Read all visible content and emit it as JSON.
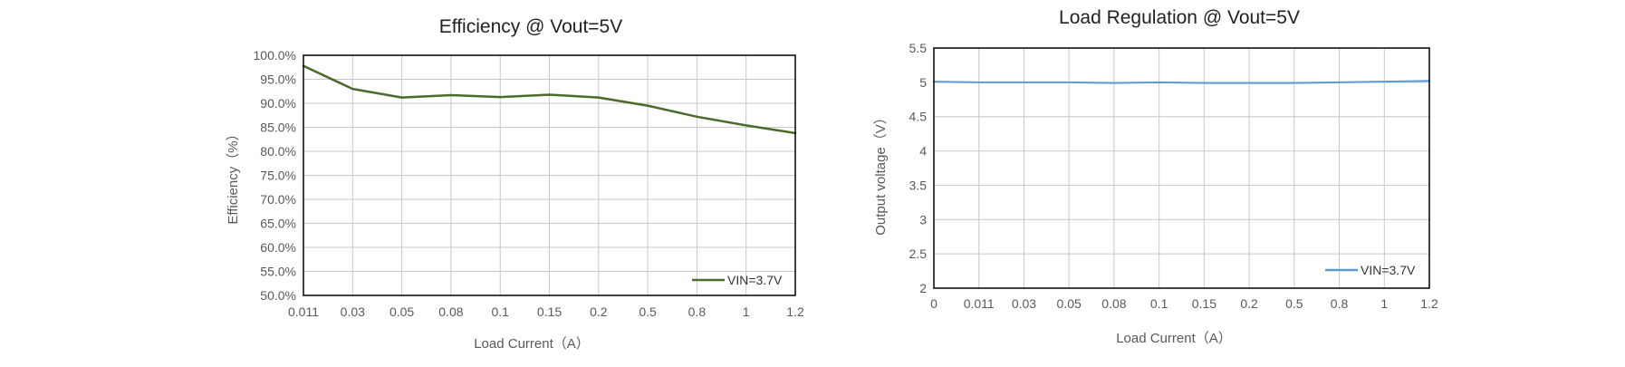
{
  "chart_data": [
    {
      "type": "line",
      "title": "Efficiency @  Vout=5V",
      "xlabel": "Load Current（A）",
      "ylabel": "Efficiency（%）",
      "categories": [
        "0.011",
        "0.03",
        "0.05",
        "0.08",
        "0.1",
        "0.15",
        "0.2",
        "0.5",
        "0.8",
        "1",
        "1.2"
      ],
      "y_ticks": [
        "50.0%",
        "55.0%",
        "60.0%",
        "65.0%",
        "70.0%",
        "75.0%",
        "80.0%",
        "85.0%",
        "90.0%",
        "95.0%",
        "100.0%"
      ],
      "ylim": [
        50,
        100
      ],
      "grid": true,
      "legend_position": "bottom-right",
      "series": [
        {
          "name": "VIN=3.7V",
          "color": "#4a6b2a",
          "values": [
            97.8,
            93.0,
            91.2,
            91.7,
            91.3,
            91.8,
            91.2,
            89.5,
            87.2,
            85.4,
            83.8
          ]
        }
      ]
    },
    {
      "type": "line",
      "title": "Load Regulation @ Vout=5V",
      "xlabel": "Load Current（A）",
      "ylabel": "Output voltage（V）",
      "categories": [
        "0",
        "0.011",
        "0.03",
        "0.05",
        "0.08",
        "0.1",
        "0.15",
        "0.2",
        "0.5",
        "0.8",
        "1",
        "1.2"
      ],
      "y_ticks": [
        "2",
        "2.5",
        "3",
        "3.5",
        "4",
        "4.5",
        "5",
        "5.5"
      ],
      "ylim": [
        2,
        5.5
      ],
      "grid": true,
      "legend_position": "bottom-right",
      "series": [
        {
          "name": "VIN=3.7V",
          "color": "#5b9bd5",
          "values": [
            5.01,
            5.0,
            5.0,
            5.0,
            4.99,
            5.0,
            4.99,
            4.99,
            4.99,
            5.0,
            5.01,
            5.02
          ]
        }
      ]
    }
  ]
}
